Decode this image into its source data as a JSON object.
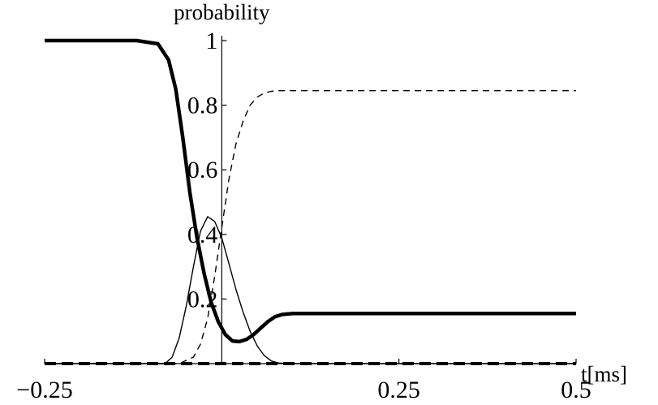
{
  "chart_data": {
    "type": "line",
    "title": "",
    "xlabel": "t[ms]",
    "ylabel": "probability",
    "xlim": [
      -0.25,
      0.5
    ],
    "ylim": [
      0,
      1
    ],
    "x_ticks": [
      -0.25,
      0.25,
      0.5
    ],
    "x_tick_labels": [
      "−0.25",
      "0.25",
      "0.5"
    ],
    "y_ticks": [
      0.2,
      0.4,
      0.6,
      0.8,
      1
    ],
    "y_tick_labels": [
      "0.2",
      "0.4",
      "0.6",
      "0.8",
      "1"
    ],
    "grid": false,
    "series": [
      {
        "style": "thick-solid",
        "x": [
          -0.25,
          -0.12,
          -0.09,
          -0.075,
          -0.065,
          -0.055,
          -0.045,
          -0.035,
          -0.025,
          -0.015,
          -0.005,
          0.005,
          0.015,
          0.025,
          0.035,
          0.045,
          0.055,
          0.065,
          0.075,
          0.085,
          0.1,
          0.14,
          0.5
        ],
        "y": [
          1.0,
          1.0,
          0.99,
          0.94,
          0.85,
          0.7,
          0.53,
          0.39,
          0.28,
          0.19,
          0.13,
          0.09,
          0.07,
          0.068,
          0.075,
          0.09,
          0.11,
          0.13,
          0.145,
          0.152,
          0.155,
          0.155,
          0.155
        ]
      },
      {
        "style": "thin-solid",
        "x": [
          -0.25,
          -0.08,
          -0.07,
          -0.06,
          -0.05,
          -0.04,
          -0.03,
          -0.02,
          -0.01,
          0.0,
          0.01,
          0.02,
          0.03,
          0.04,
          0.05,
          0.06,
          0.07,
          0.08,
          0.09,
          0.5
        ],
        "y": [
          0.0,
          0.0,
          0.02,
          0.08,
          0.18,
          0.3,
          0.41,
          0.455,
          0.44,
          0.39,
          0.31,
          0.23,
          0.16,
          0.1,
          0.055,
          0.025,
          0.008,
          0.002,
          0.0,
          0.0
        ]
      },
      {
        "style": "thin-dashed",
        "x": [
          -0.25,
          -0.06,
          -0.04,
          -0.03,
          -0.02,
          -0.01,
          0.0,
          0.01,
          0.02,
          0.03,
          0.04,
          0.05,
          0.06,
          0.07,
          0.08,
          0.1,
          0.5
        ],
        "y": [
          0.0,
          0.0,
          0.02,
          0.06,
          0.14,
          0.27,
          0.42,
          0.57,
          0.68,
          0.75,
          0.8,
          0.825,
          0.838,
          0.843,
          0.845,
          0.845,
          0.845
        ]
      },
      {
        "style": "thick-dashed",
        "x": [
          -0.25,
          0.5
        ],
        "y": [
          0.0,
          0.0
        ]
      }
    ]
  }
}
